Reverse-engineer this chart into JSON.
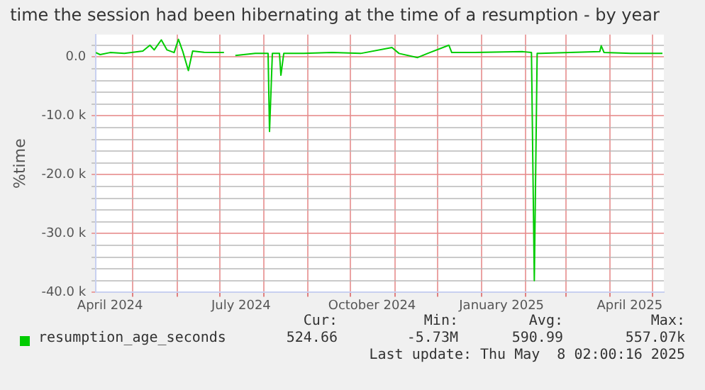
{
  "chart_data": {
    "type": "line",
    "title": "time the session had been hibernating at the time of a resumption - by year",
    "ylabel": "%time",
    "xlim": [
      "2024-04-05",
      "2025-05-09"
    ],
    "xticks": [
      {
        "value": "2024-04-15",
        "label": "April 2024"
      },
      {
        "value": "2024-05-01",
        "label": null
      },
      {
        "value": "2024-06-01",
        "label": null
      },
      {
        "value": "2024-07-01",
        "label": null
      },
      {
        "value": "2024-07-16",
        "label": "July 2024"
      },
      {
        "value": "2024-08-01",
        "label": null
      },
      {
        "value": "2024-09-01",
        "label": null
      },
      {
        "value": "2024-10-01",
        "label": null
      },
      {
        "value": "2024-10-16",
        "label": "October 2024"
      },
      {
        "value": "2024-11-01",
        "label": null
      },
      {
        "value": "2024-12-01",
        "label": null
      },
      {
        "value": "2025-01-01",
        "label": null
      },
      {
        "value": "2025-01-15",
        "label": "January 2025"
      },
      {
        "value": "2025-02-01",
        "label": null
      },
      {
        "value": "2025-03-01",
        "label": null
      },
      {
        "value": "2025-04-01",
        "label": null
      },
      {
        "value": "2025-04-15",
        "label": "April 2025"
      },
      {
        "value": "2025-05-01",
        "label": null
      }
    ],
    "ylim": [
      -40000,
      3800
    ],
    "yticks": [
      {
        "value": -40000,
        "label": "-40.0 k"
      },
      {
        "value": -38000,
        "label": null
      },
      {
        "value": -36000,
        "label": null
      },
      {
        "value": -34000,
        "label": null
      },
      {
        "value": -32000,
        "label": null
      },
      {
        "value": -30000,
        "label": "-30.0 k"
      },
      {
        "value": -28000,
        "label": null
      },
      {
        "value": -26000,
        "label": null
      },
      {
        "value": -24000,
        "label": null
      },
      {
        "value": -22000,
        "label": null
      },
      {
        "value": -20000,
        "label": "-20.0 k"
      },
      {
        "value": -18000,
        "label": null
      },
      {
        "value": -16000,
        "label": null
      },
      {
        "value": -14000,
        "label": null
      },
      {
        "value": -12000,
        "label": null
      },
      {
        "value": -10000,
        "label": "-10.0 k"
      },
      {
        "value": -8000,
        "label": null
      },
      {
        "value": -6000,
        "label": null
      },
      {
        "value": -4000,
        "label": null
      },
      {
        "value": -2000,
        "label": null
      },
      {
        "value": 0,
        "label": "0.0"
      },
      {
        "value": 2000,
        "label": null
      }
    ],
    "grid": true,
    "legend": "bottom",
    "marker": "none",
    "line_style": "solid",
    "x": [
      "2024-04-05",
      "2024-04-08",
      "2024-04-15",
      "2024-04-25",
      "2024-05-08",
      "2024-05-13",
      "2024-05-16",
      "2024-05-21",
      "2024-05-25",
      "2024-05-30",
      "2024-06-02",
      "2024-06-05",
      "2024-06-09",
      "2024-06-12",
      "2024-06-20",
      "2024-07-04",
      "2024-07-08",
      "2024-07-12",
      "2024-07-26",
      "2024-08-04",
      "2024-08-05",
      "2024-08-07",
      "2024-08-12",
      "2024-08-13",
      "2024-08-15",
      "2024-08-29",
      "2024-09-18",
      "2024-10-08",
      "2024-10-30",
      "2024-11-04",
      "2024-11-17",
      "2024-11-24",
      "2024-12-09",
      "2024-12-11",
      "2024-12-27",
      "2025-01-30",
      "2025-02-05",
      "2025-02-07",
      "2025-02-09",
      "2025-03-04",
      "2025-03-25",
      "2025-03-26",
      "2025-03-28",
      "2025-04-16",
      "2025-05-08"
    ],
    "series": [
      {
        "name": "resumption_age_seconds",
        "color": "#00cc00",
        "values": [
          750,
          400,
          750,
          600,
          1000,
          2000,
          1200,
          2900,
          1200,
          750,
          3000,
          1000,
          -2300,
          1000,
          800,
          750,
          null,
          250,
          600,
          600,
          -12650,
          600,
          600,
          -3100,
          600,
          600,
          750,
          600,
          1600,
          600,
          -100,
          600,
          2000,
          750,
          750,
          900,
          750,
          -38000,
          600,
          750,
          900,
          1900,
          750,
          600,
          600
        ]
      }
    ],
    "annotations": [
      "Cur:",
      "Min:",
      "Avg:",
      "Max:",
      "524.66",
      "-5.73M",
      "590.99",
      "557.07k",
      "Last update: Thu May  8 02:00:16 2025"
    ]
  }
}
